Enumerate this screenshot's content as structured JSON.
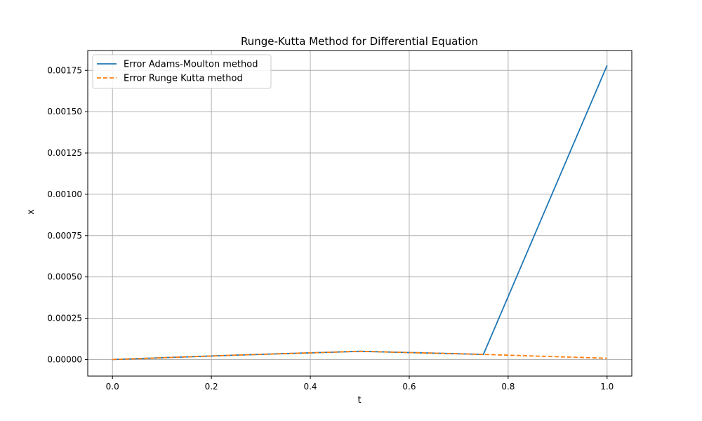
{
  "chart_data": {
    "type": "line",
    "title": "Runge-Kutta Method for Differential Equation",
    "xlabel": "t",
    "ylabel": "x",
    "xlim": [
      -0.05,
      1.05
    ],
    "ylim": [
      -0.0001,
      0.00187
    ],
    "xticks": [
      0.0,
      0.2,
      0.4,
      0.6,
      0.8,
      1.0
    ],
    "xtick_labels": [
      "0.0",
      "0.2",
      "0.4",
      "0.6",
      "0.8",
      "1.0"
    ],
    "yticks": [
      0.0,
      0.00025,
      0.0005,
      0.00075,
      0.001,
      0.00125,
      0.0015,
      0.00175
    ],
    "ytick_labels": [
      "0.00000",
      "0.00025",
      "0.00050",
      "0.00075",
      "0.00100",
      "0.00125",
      "0.00150",
      "0.00175"
    ],
    "grid": true,
    "legend_position": "upper-left",
    "series": [
      {
        "name": "Error Adams-Moulton method",
        "color": "#1f77b4",
        "dash": "solid",
        "x": [
          0.0,
          0.25,
          0.5,
          0.75,
          1.0
        ],
        "y": [
          0.0,
          2.7e-05,
          5e-05,
          3.1e-05,
          0.00178
        ]
      },
      {
        "name": "Error Runge Kutta method",
        "color": "#ff7f0e",
        "dash": "dashed",
        "x": [
          0.0,
          0.25,
          0.5,
          0.75,
          1.0
        ],
        "y": [
          0.0,
          2.7e-05,
          5e-05,
          3.1e-05,
          8e-06
        ]
      }
    ]
  }
}
